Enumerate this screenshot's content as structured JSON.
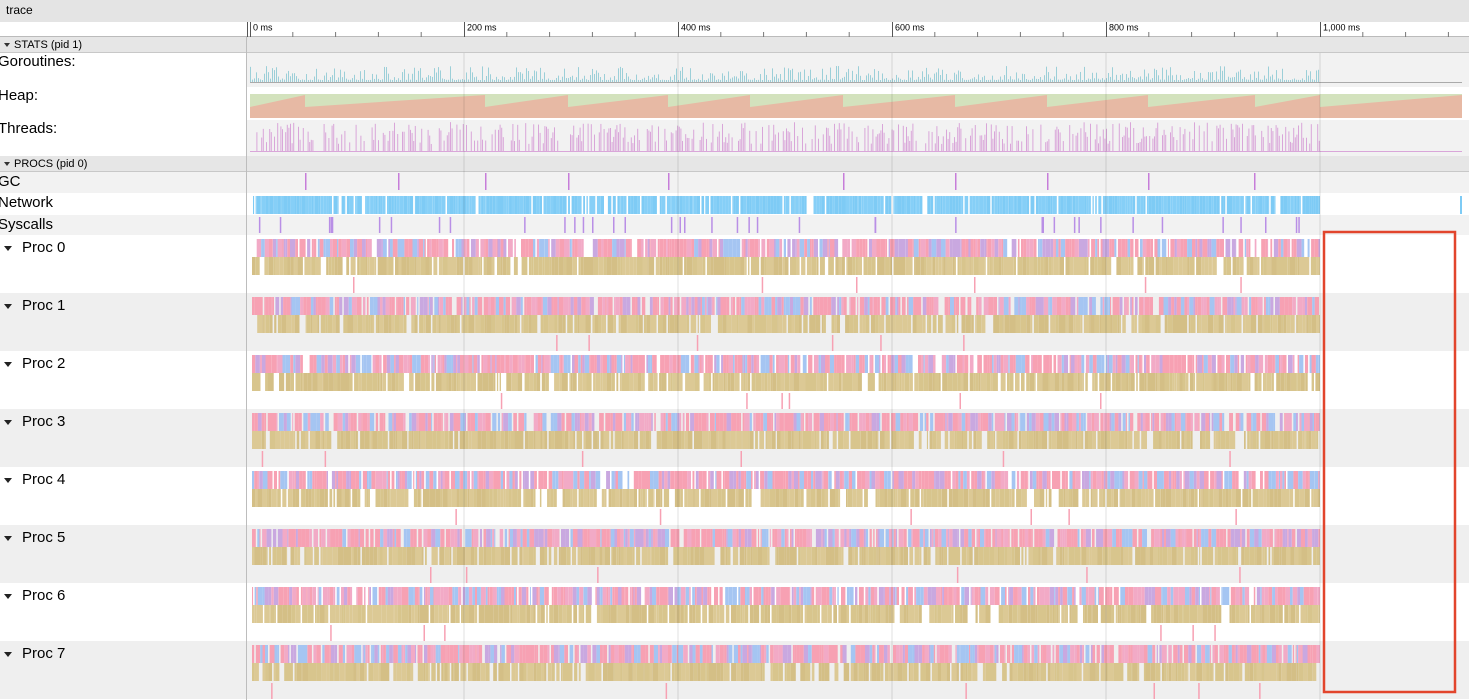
{
  "header": {
    "title": "trace"
  },
  "ruler": {
    "labels": [
      "0 ms",
      "200 ms",
      "400 ms",
      "600 ms",
      "800 ms",
      "1,000 ms"
    ]
  },
  "groups": [
    {
      "title": "STATS (pid 1)",
      "rows": [
        "Goroutines:",
        "Heap:",
        "Threads:"
      ]
    },
    {
      "title": "PROCS (pid 0)",
      "rows": [
        "GC",
        "Network",
        "Syscalls",
        "Proc 0",
        "Proc 1",
        "Proc 2",
        "Proc 3",
        "Proc 4",
        "Proc 5",
        "Proc 6",
        "Proc 7"
      ]
    }
  ]
}
